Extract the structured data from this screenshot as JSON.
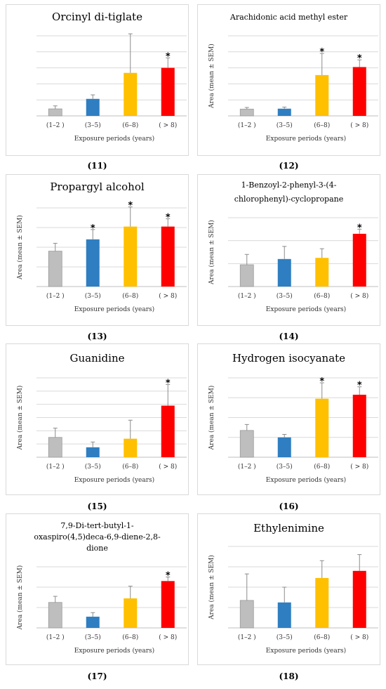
{
  "colors": [
    "#bebebe",
    "#2e7ec1",
    "#ffc000",
    "#ff0000"
  ],
  "chart_data": [
    {
      "type": "bar",
      "title": "Orcinyl di-tiglate",
      "categories": [
        "(1–2 )",
        "(3–5)",
        "(6–8)",
        "( > 8)"
      ],
      "values": [
        0.7,
        1.7,
        4.3,
        4.8
      ],
      "errors": [
        0.3,
        0.4,
        3.9,
        1.0
      ],
      "significant": [
        "",
        "",
        "",
        "*"
      ],
      "ymax": 8,
      "yticks": 5,
      "xlabel": "Exposure periods (years)",
      "ylabel": "",
      "panel_label": "(11)"
    },
    {
      "type": "bar",
      "title": "Arachidonic acid methyl ester",
      "categories": [
        "(1–2 )",
        "(3–5)",
        "(6–8)",
        "( > 8)"
      ],
      "values": [
        0.85,
        0.9,
        5.1,
        6.1
      ],
      "errors": [
        0.2,
        0.2,
        2.7,
        0.9
      ],
      "significant": [
        "",
        "",
        "*",
        "*"
      ],
      "ymax": 10,
      "yticks": 5,
      "xlabel": "Exposure periods (years)",
      "ylabel": "Area (mean ± SEM)",
      "panel_label": "(12)"
    },
    {
      "type": "bar",
      "title": "Propargyl alcohol",
      "categories": [
        "(1–2 )",
        "(3–5)",
        "(6–8)",
        "( > 8)"
      ],
      "values": [
        1.8,
        2.4,
        3.05,
        3.05
      ],
      "errors": [
        0.4,
        0.5,
        1.0,
        0.4
      ],
      "significant": [
        "",
        "*",
        "*",
        "*"
      ],
      "ymax": 4,
      "yticks": 4,
      "xlabel": "Exposure periods (years)",
      "ylabel": "Area (mean ± SEM)",
      "panel_label": "(13)"
    },
    {
      "type": "bar",
      "title": "1-Benzoyl-2-phenyl-3-(4-chlorophenyl)-cyclopropane",
      "categories": [
        "(1–2 )",
        "(3–5)",
        "(6–8)",
        "( > 8)"
      ],
      "values": [
        0.95,
        1.2,
        1.25,
        2.3
      ],
      "errors": [
        0.45,
        0.55,
        0.4,
        0.2
      ],
      "significant": [
        "",
        "",
        "",
        "*"
      ],
      "ymax": 3,
      "yticks": 3,
      "xlabel": "Exposure periods (years)",
      "ylabel": "Area (mean ± SEM)",
      "panel_label": "(14)"
    },
    {
      "type": "bar",
      "title": "Guanidine",
      "categories": [
        "(1–2 )",
        "(3–5)",
        "(6–8)",
        "( > 8)"
      ],
      "values": [
        1.5,
        0.75,
        1.4,
        3.9
      ],
      "errors": [
        0.7,
        0.4,
        1.4,
        1.6
      ],
      "significant": [
        "",
        "",
        "",
        "*"
      ],
      "ymax": 6,
      "yticks": 6,
      "xlabel": "Exposure periods (years)",
      "ylabel": "Area (mean ± SEM)",
      "panel_label": "(15)"
    },
    {
      "type": "bar",
      "title": "Hydrogen isocyanate",
      "categories": [
        "(1–2 )",
        "(3–5)",
        "(6–8)",
        "( > 8)"
      ],
      "values": [
        1.35,
        1.0,
        2.95,
        3.15
      ],
      "errors": [
        0.3,
        0.15,
        0.8,
        0.4
      ],
      "significant": [
        "",
        "",
        "*",
        "*"
      ],
      "ymax": 4,
      "yticks": 4,
      "xlabel": "Exposure periods (years)",
      "ylabel": "Area (mean ± SEM)",
      "panel_label": "(16)"
    },
    {
      "type": "bar",
      "title": "7,9-Di-tert-butyl-1-oxaspiro(4,5)deca-6,9-diene-2,8-dione",
      "categories": [
        "(1–2 )",
        "(3–5)",
        "(6–8)",
        "( > 8)"
      ],
      "values": [
        1.25,
        0.55,
        1.45,
        2.3
      ],
      "errors": [
        0.3,
        0.2,
        0.6,
        0.2
      ],
      "significant": [
        "",
        "",
        "",
        "*"
      ],
      "ymax": 3,
      "yticks": 3,
      "xlabel": "Exposure periods (years)",
      "ylabel": "Area (mean ± SEM)",
      "panel_label": "(17)"
    },
    {
      "type": "bar",
      "title": "Ethylenimine",
      "categories": [
        "(1–2 )",
        "(3–5)",
        "(6–8)",
        "( > 8)"
      ],
      "values": [
        1.35,
        1.25,
        2.45,
        2.8
      ],
      "errors": [
        1.3,
        0.75,
        0.85,
        0.8
      ],
      "significant": [
        "",
        "",
        "",
        ""
      ],
      "ymax": 4,
      "yticks": 4,
      "xlabel": "Exposure periods (years)",
      "ylabel": "Area (mean ± SEM)",
      "panel_label": "(18)"
    }
  ]
}
